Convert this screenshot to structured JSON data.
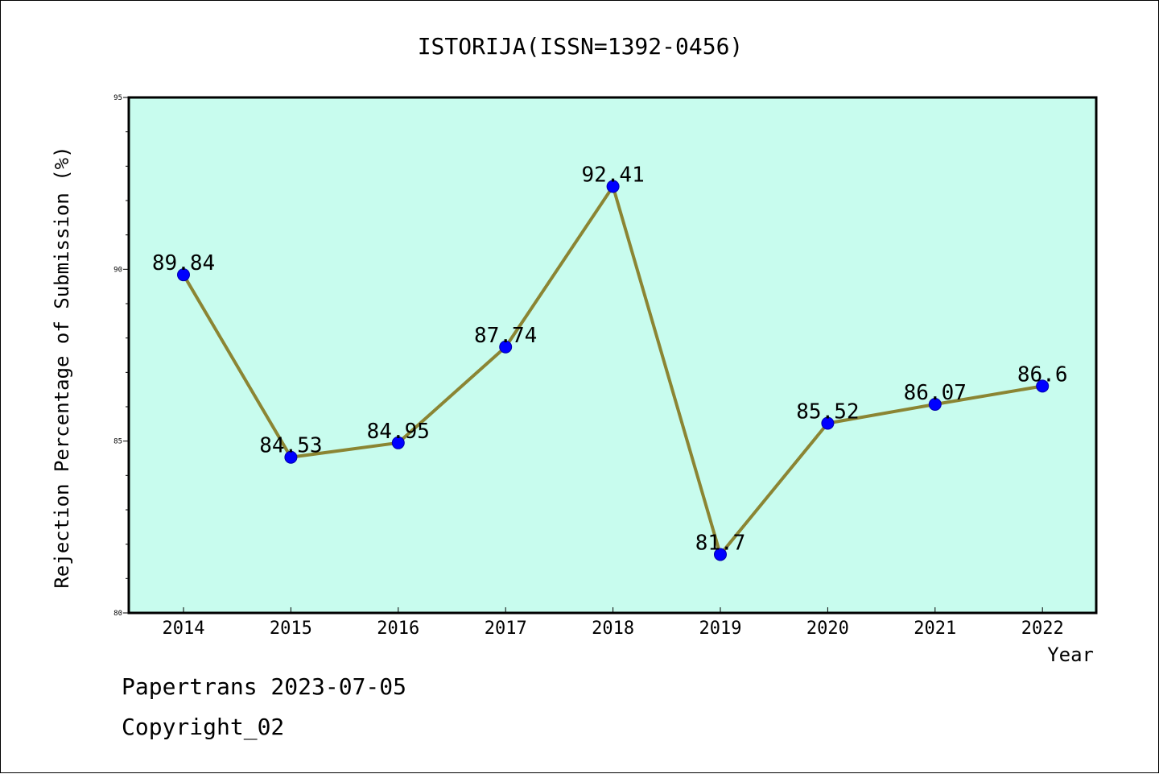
{
  "colors": {
    "plot_background": "#c8fcee",
    "line": "#8b8533",
    "marker": "#0000ff",
    "text": "#000000"
  },
  "chart_data": {
    "type": "line",
    "title": "ISTORIJA(ISSN=1392-0456)",
    "xlabel": "Year",
    "ylabel": "Rejection Percentage of Submission (%)",
    "categories": [
      "2014",
      "2015",
      "2016",
      "2017",
      "2018",
      "2019",
      "2020",
      "2021",
      "2022"
    ],
    "values": [
      89.84,
      84.53,
      84.95,
      87.74,
      92.41,
      81.7,
      85.52,
      86.07,
      86.6
    ],
    "data_labels": [
      "89.84",
      "84.53",
      "84.95",
      "87.74",
      "92.41",
      "81.7",
      "85.52",
      "86.07",
      "86.6"
    ],
    "ylim": [
      80,
      95
    ],
    "yticks": [
      "80",
      "85",
      "90",
      "95"
    ],
    "y_minor_step": 1,
    "grid": false,
    "legend": "none"
  },
  "footer": {
    "source": "Papertrans 2023-07-05",
    "copyright": "Copyright_02"
  }
}
